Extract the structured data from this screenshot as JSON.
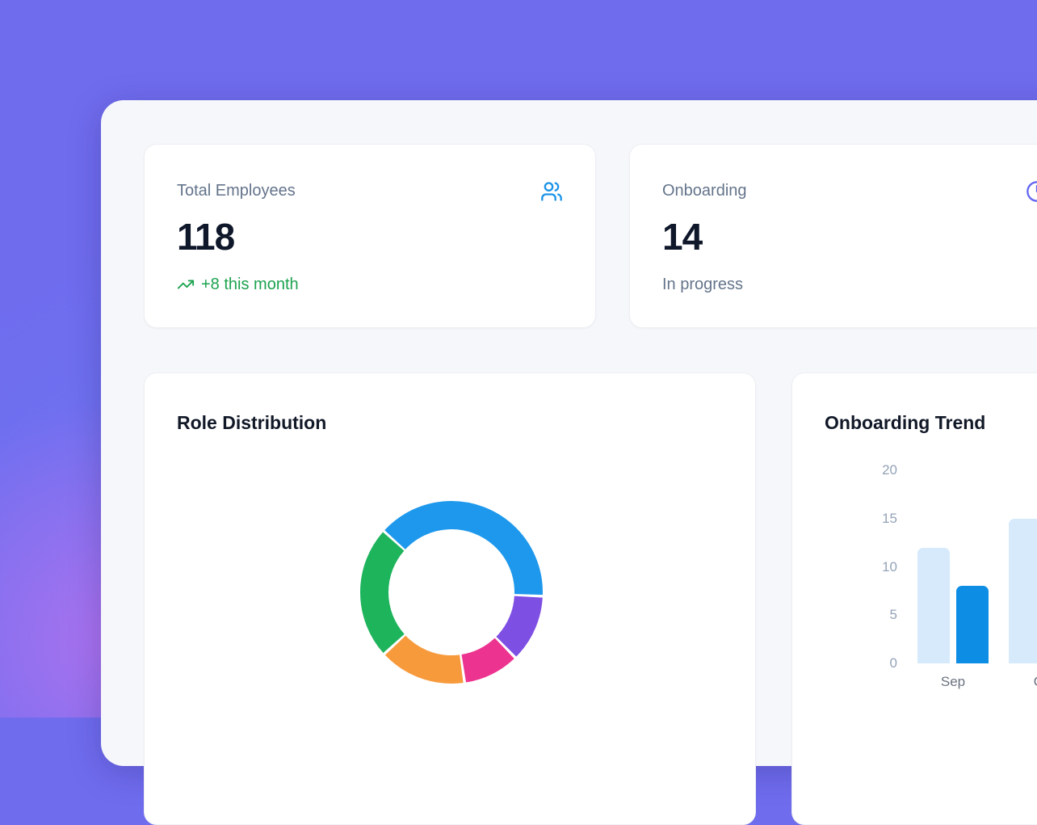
{
  "page": {
    "background_color": "#6f6cee",
    "panel_color": "#f6f7fa",
    "accent_glow_color": "#e270ec"
  },
  "stats": [
    {
      "label": "Total Employees",
      "value": "118",
      "sub": "+8 this month",
      "sub_type": "positive",
      "sub_color": "#1ca24f",
      "icon": "users-icon",
      "icon_color": "#1a93e8"
    },
    {
      "label": "Onboarding",
      "value": "14",
      "sub": "In progress",
      "sub_type": "neutral",
      "sub_color": "#64748b",
      "icon": "clock-icon",
      "icon_color": "#6366f1"
    }
  ],
  "chart_data": [
    {
      "type": "doughnut",
      "title": "Role Distribution",
      "legend": "none",
      "labels_visible": false,
      "rotation_deg": 312,
      "inner_radius_px": 78,
      "outer_radius_px": 113,
      "segments": [
        {
          "label": "blue-segment",
          "color": "#1e98ec",
          "percent": 39.0
        },
        {
          "label": "purple-segment",
          "color": "#7e4fe3",
          "percent": 12.0
        },
        {
          "label": "pink-segment",
          "color": "#ec3390",
          "percent": 10.0
        },
        {
          "label": "orange-segment",
          "color": "#f79a3c",
          "percent": 15.5
        },
        {
          "label": "green-segment",
          "color": "#1db45c",
          "percent": 23.5
        }
      ]
    },
    {
      "type": "bar",
      "title": "Onboarding Trend",
      "legend": "none",
      "grid": false,
      "categories": [
        "Sep",
        "Oct"
      ],
      "series": [
        {
          "name": "light-blue-series",
          "color": "#d6eafc",
          "values": [
            12,
            15
          ]
        },
        {
          "name": "dark-blue-series",
          "color": "#0d8de4",
          "values": [
            8,
            null
          ]
        }
      ],
      "ylim": [
        0,
        20
      ],
      "yticks": [
        0,
        5,
        10,
        15,
        20
      ],
      "tick_color": "#94a3b8",
      "xlabel_color": "#6b7280"
    }
  ]
}
